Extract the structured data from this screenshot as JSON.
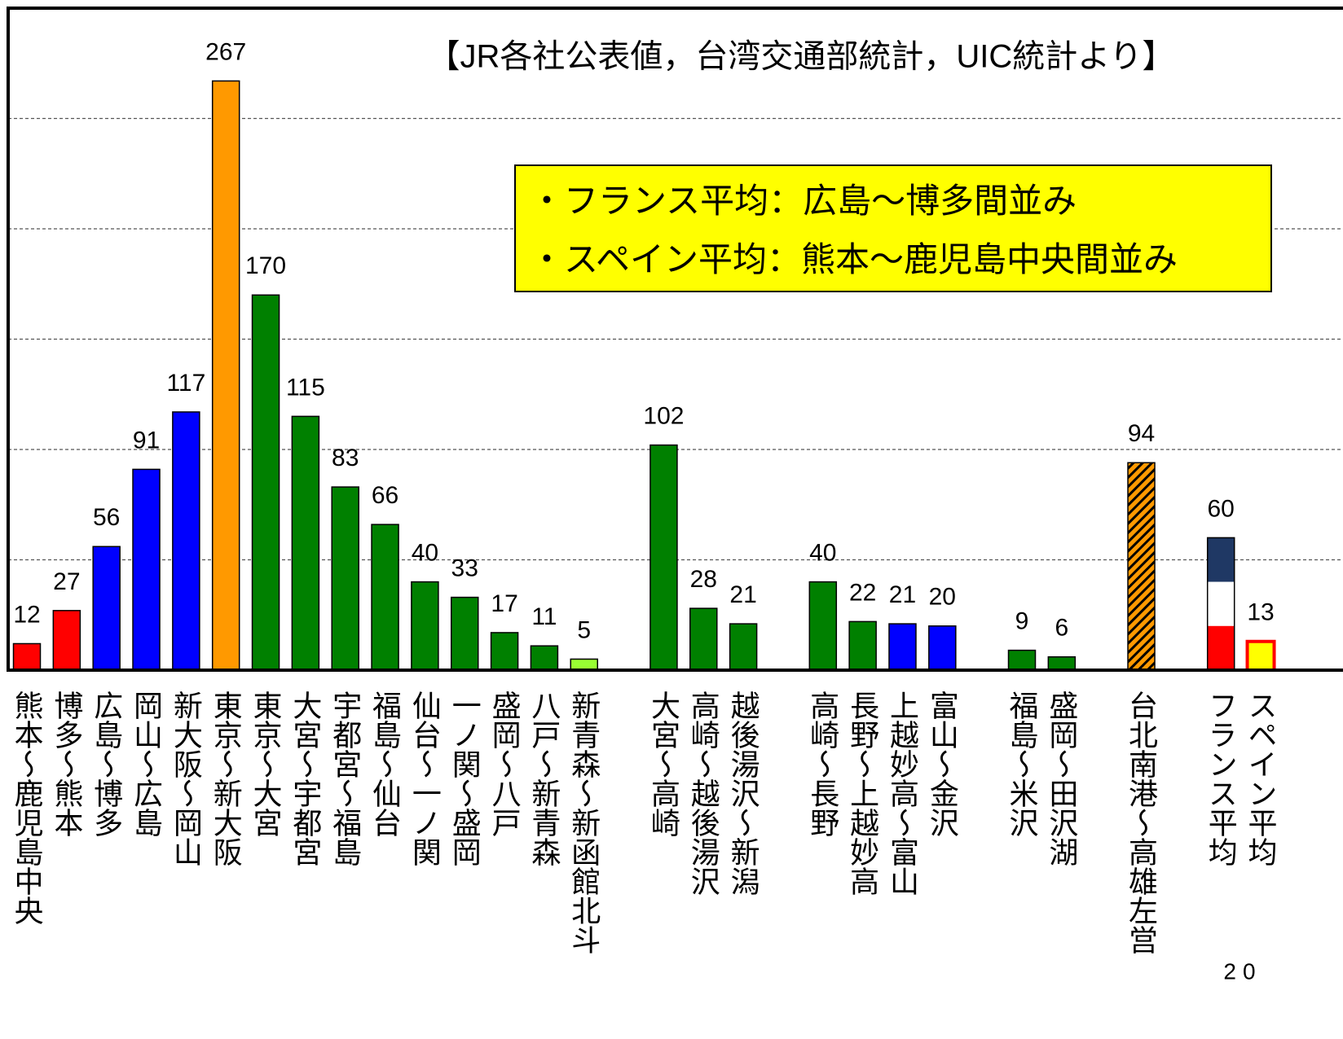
{
  "chart_data": {
    "type": "bar",
    "title": "【JR各社公表値，台湾交通部統計，UIC統計より】",
    "annotations": [
      "・フランス平均：広島～博多間並み",
      "・スペイン平均：熊本～鹿児島中央間並み"
    ],
    "categories": [
      "熊本～鹿児島中央",
      "博多～熊本",
      "広島～博多",
      "岡山～広島",
      "新大阪～岡山",
      "東京～新大阪",
      "東京～大宮",
      "大宮～宇都宮",
      "宇都宮～福島",
      "福島～仙台",
      "仙台～一ノ関",
      "一ノ関～盛岡",
      "盛岡～八戸",
      "八戸～新青森",
      "新青森～新函館北斗",
      null,
      "大宮～高崎",
      "高崎～越後湯沢",
      "越後湯沢～新潟",
      null,
      "高崎～長野",
      "長野～上越妙高",
      "上越妙高～富山",
      "富山～金沢",
      null,
      "福島～米沢",
      "盛岡～田沢湖",
      null,
      "台北南港～高雄左営",
      null,
      "フランス平均",
      "スペイン平均"
    ],
    "values": [
      12,
      27,
      56,
      91,
      117,
      267,
      170,
      115,
      83,
      66,
      40,
      33,
      17,
      11,
      5,
      null,
      102,
      28,
      21,
      null,
      40,
      22,
      21,
      20,
      null,
      9,
      6,
      null,
      94,
      null,
      60,
      13
    ],
    "colors": [
      "#ff0000",
      "#ff0000",
      "#0000ff",
      "#0000ff",
      "#0000ff",
      "#ff9900",
      "#008000",
      "#008000",
      "#008000",
      "#008000",
      "#008000",
      "#008000",
      "#008000",
      "#008000",
      "#99ff33",
      null,
      "#008000",
      "#008000",
      "#008000",
      null,
      "#008000",
      "#008000",
      "#0000ff",
      "#0000ff",
      null,
      "#008000",
      "#008000",
      null,
      "#ff9900",
      null,
      [
        "#1f3864",
        "#ffffff",
        "#ff0000"
      ],
      "#ffff00"
    ],
    "hatched": [
      28
    ],
    "outlined": {
      "31": "#ff0000"
    },
    "ylim": [
      0,
      300
    ],
    "yticks": [
      50,
      100,
      150,
      200,
      250
    ],
    "grid": true
  },
  "page_number": "20"
}
